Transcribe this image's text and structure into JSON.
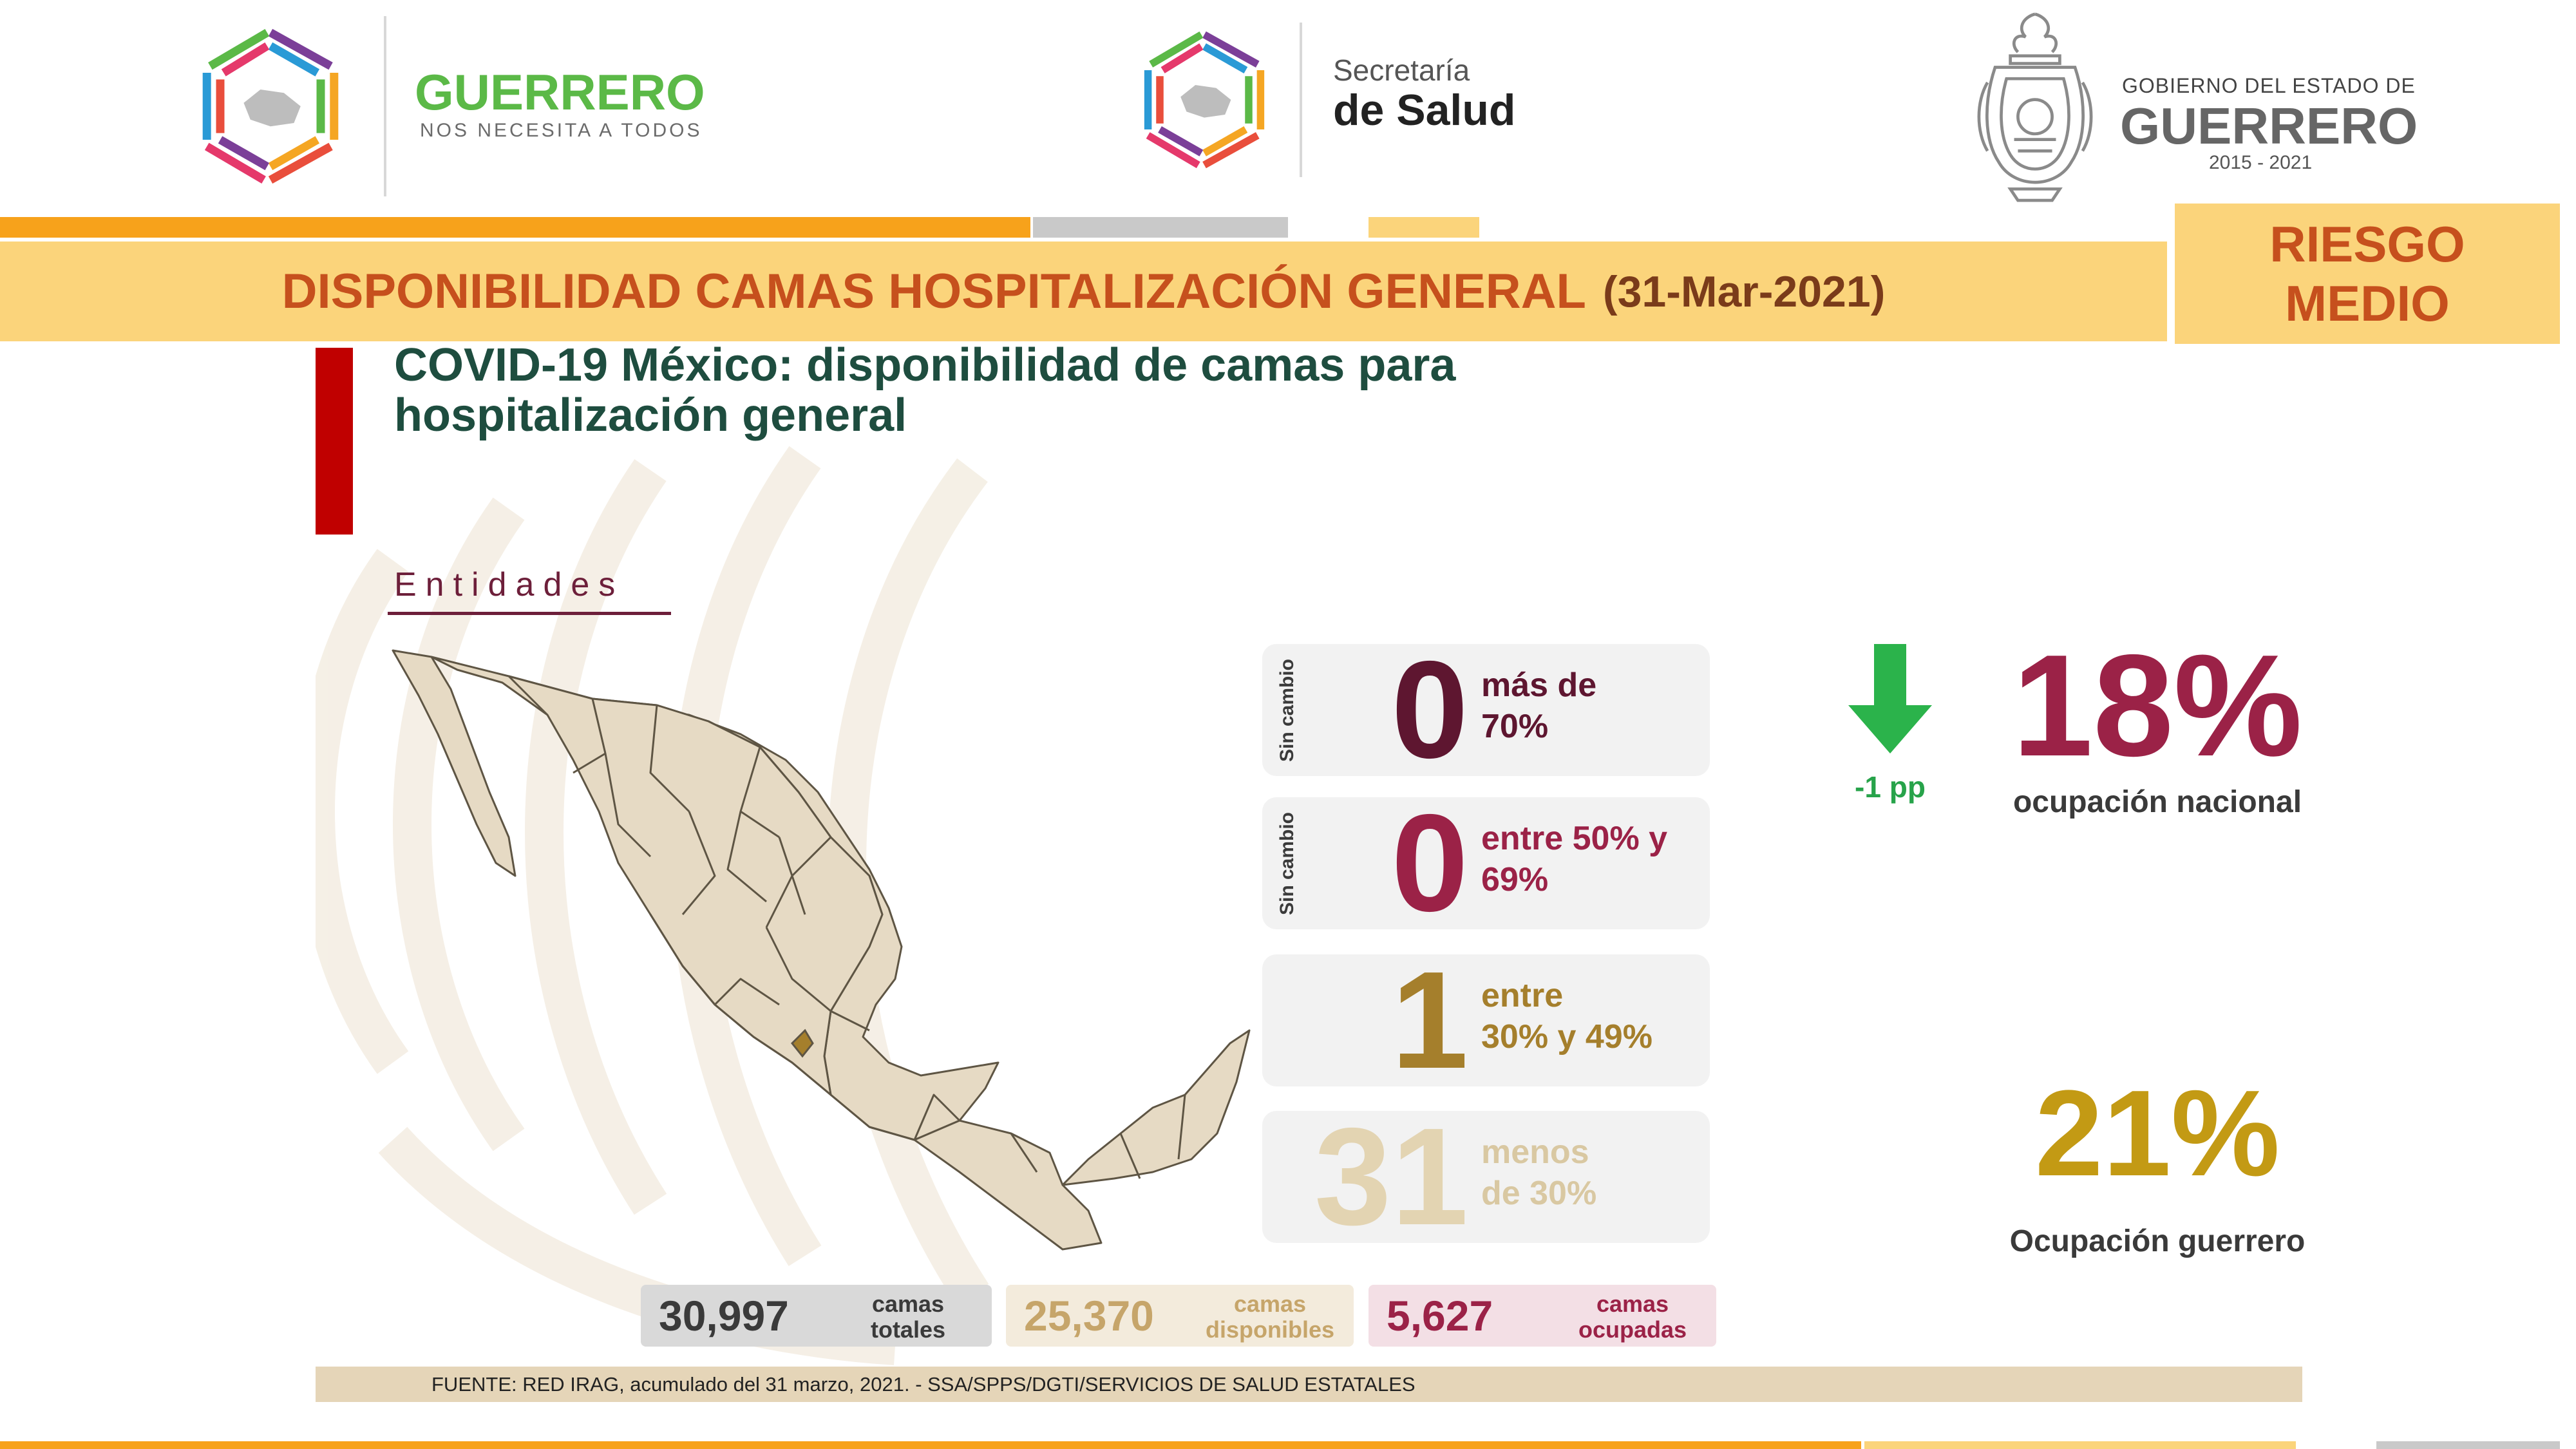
{
  "header": {
    "logo1": {
      "title": "GUERRERO",
      "subtitle": "NOS NECESITA A TODOS"
    },
    "logo2": {
      "line1": "Secretaría",
      "line2": "de Salud"
    },
    "logo3": {
      "line1": "GOBIERNO DEL ESTADO DE",
      "line2": "GUERRERO",
      "line3": "2015 - 2021"
    }
  },
  "banner": {
    "title": "DISPONIBILIDAD CAMAS HOSPITALIZACIÓN GENERAL",
    "date": "(31-Mar-2021)",
    "risk_line1": "RIESGO",
    "risk_line2": "MEDIO"
  },
  "slide": {
    "title_line1": "COVID-19 México: disponibilidad de camas para",
    "title_line2": "hospitalización general",
    "section_label": "Entidades",
    "categories": [
      {
        "side": "Sin cambio",
        "value": "0",
        "label_line1": "más de",
        "label_line2": "70%",
        "color": "#5e1630"
      },
      {
        "side": "Sin cambio",
        "value": "0",
        "label_line1": "entre 50% y",
        "label_line2": "69%",
        "color": "#9b2247"
      },
      {
        "side": "",
        "value": "1",
        "label_line1": "entre",
        "label_line2": "30% y 49%",
        "color": "#a57f2c"
      },
      {
        "side": "",
        "value": "31",
        "label_line1": "menos",
        "label_line2": "de 30%",
        "color": "#e3d4b2"
      }
    ],
    "national": {
      "value": "18%",
      "caption": "ocupación nacional",
      "delta": "-1 pp",
      "color": "#9b2247"
    },
    "guerrero": {
      "value": "21%",
      "caption": "Ocupación guerrero",
      "color": "#c39a14"
    },
    "totals": [
      {
        "value": "30,997",
        "label_line1": "camas",
        "label_line2": "totales",
        "color": "#3a3a3a",
        "bg": "#d9d9d9"
      },
      {
        "value": "25,370",
        "label_line1": "camas",
        "label_line2": "disponibles",
        "color": "#c6a56a",
        "bg": "#f3ebdc"
      },
      {
        "value": "5,627",
        "label_line1": "camas",
        "label_line2": "ocupadas",
        "color": "#9b2247",
        "bg": "#f3dfe5"
      }
    ],
    "source": "FUENTE: RED IRAG, acumulado del 31 marzo, 2021. - SSA/SPPS/DGTI/SERVICIOS DE SALUD ESTATALES"
  }
}
